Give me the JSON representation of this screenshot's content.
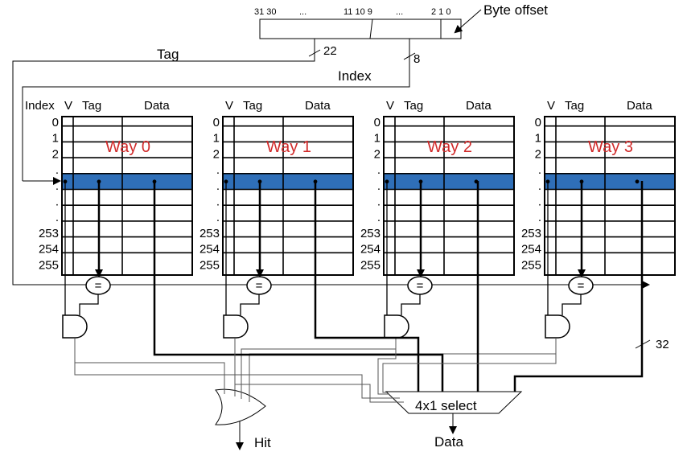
{
  "address": {
    "bit_labels": [
      "31 30",
      "...",
      "11 10  9",
      "...",
      "2  1  0"
    ],
    "byte_offset_label": "Byte offset",
    "tag_label": "Tag",
    "tag_width": "22",
    "index_label": "Index",
    "index_width": "8"
  },
  "columns": {
    "index": "Index",
    "v": "V",
    "tag": "Tag",
    "data": "Data"
  },
  "row_labels": [
    "0",
    "1",
    "2",
    ".",
    ".",
    ".",
    ".",
    "253",
    "254",
    "255"
  ],
  "ways": [
    {
      "name": "Way 0"
    },
    {
      "name": "Way 1"
    },
    {
      "name": "Way 2"
    },
    {
      "name": "Way 3"
    }
  ],
  "comparator_symbol": "=",
  "data_width": "32",
  "mux_label": "4x1 select",
  "hit_label": "Hit",
  "data_out_label": "Data",
  "colors": {
    "selected_row": "#2f6fb8",
    "way_label": "#d02a2a"
  }
}
